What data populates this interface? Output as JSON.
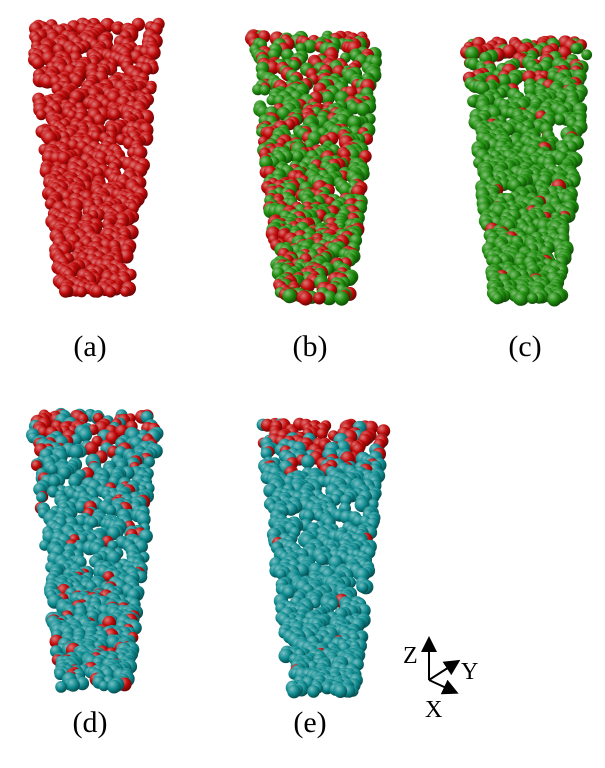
{
  "figure": {
    "panels": [
      {
        "label": "(a)",
        "colors": [
          "#c20a0a"
        ],
        "fractions": [
          1.0
        ],
        "segregation": 0.0
      },
      {
        "label": "(b)",
        "colors": [
          "#c20a0a",
          "#1f8e0e"
        ],
        "fractions": [
          0.4,
          0.6
        ],
        "segregation": 0.1
      },
      {
        "label": "(c)",
        "colors": [
          "#c20a0a",
          "#1f8e0e"
        ],
        "fractions": [
          0.15,
          0.85
        ],
        "segregation": 0.85
      },
      {
        "label": "(d)",
        "colors": [
          "#c20a0a",
          "#0f8d92"
        ],
        "fractions": [
          0.25,
          0.75
        ],
        "segregation": 0.55
      },
      {
        "label": "(e)",
        "colors": [
          "#c20a0a",
          "#0f8d92"
        ],
        "fractions": [
          0.12,
          0.88
        ],
        "segregation": 0.9
      }
    ],
    "axes_triad": {
      "z": "Z",
      "y": "Y",
      "x": "X"
    }
  }
}
